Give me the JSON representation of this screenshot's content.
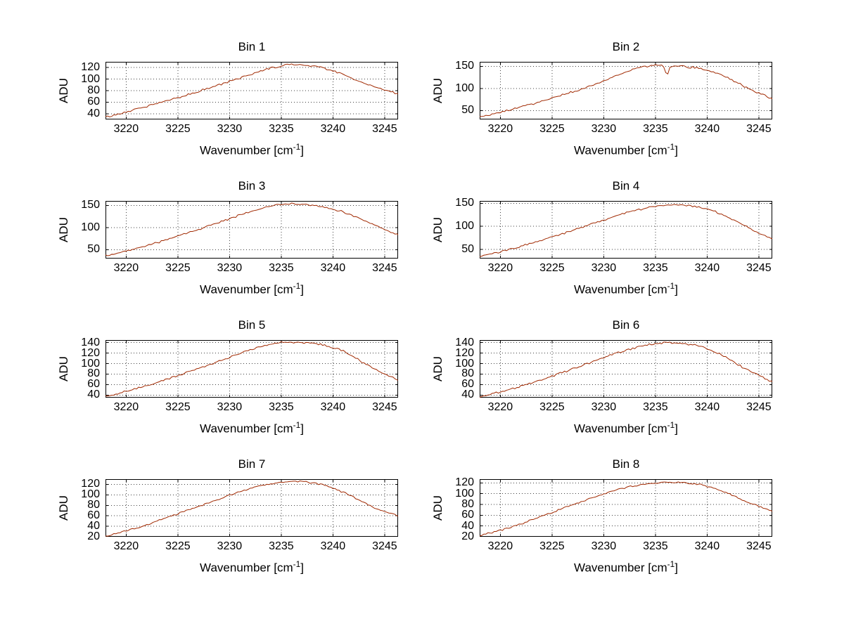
{
  "figure": {
    "background": "#ffffff",
    "description": "2x4 grid of spectra subplots"
  },
  "styles": {
    "line_color": "#a02800",
    "grid_color": "#3f3f3f",
    "axis_color": "#000000",
    "text_color": "#000000"
  },
  "chart_data": [
    {
      "type": "line",
      "title": "Bin 1",
      "xlabel": "Wavenumber [cm^{-1}]",
      "ylabel": "ADU",
      "xlim": [
        3218,
        3246.3
      ],
      "ylim": [
        30,
        130
      ],
      "xticks": [
        3220,
        3225,
        3230,
        3235,
        3240,
        3245
      ],
      "yticks": [
        40,
        60,
        80,
        100,
        120
      ],
      "grid": "on",
      "x_start": 3218,
      "x_step": 1,
      "noise_amp": 2.0,
      "y": [
        34,
        38,
        43,
        48,
        53,
        58,
        63,
        68,
        73,
        79,
        84,
        90,
        96,
        102,
        108,
        114,
        119,
        123,
        126,
        125,
        123,
        120,
        115,
        108,
        100,
        93,
        87,
        81,
        76
      ]
    },
    {
      "type": "line",
      "title": "Bin 2",
      "xlabel": "Wavenumber [cm^{-1}]",
      "ylabel": "ADU",
      "xlim": [
        3218,
        3246.3
      ],
      "ylim": [
        30,
        160
      ],
      "xticks": [
        3220,
        3225,
        3230,
        3235,
        3240,
        3245
      ],
      "yticks": [
        50,
        100,
        150
      ],
      "grid": "on",
      "x_start": 3218,
      "x_step": 1,
      "noise_amp": 2.5,
      "spikes": [
        {
          "x": 3236.1,
          "y": 128,
          "width": 0.35
        }
      ],
      "y": [
        36,
        41,
        46,
        52,
        58,
        64,
        71,
        78,
        85,
        92,
        100,
        108,
        116,
        126,
        136,
        145,
        150,
        152,
        151,
        151,
        149,
        146,
        141,
        134,
        124,
        112,
        100,
        89,
        80
      ]
    },
    {
      "type": "line",
      "title": "Bin 3",
      "xlabel": "Wavenumber [cm^{-1}]",
      "ylabel": "ADU",
      "xlim": [
        3218,
        3246.3
      ],
      "ylim": [
        30,
        160
      ],
      "xticks": [
        3220,
        3225,
        3230,
        3235,
        3240,
        3245
      ],
      "yticks": [
        50,
        100,
        150
      ],
      "grid": "on",
      "x_start": 3218,
      "x_step": 1,
      "noise_amp": 2.5,
      "y": [
        36,
        41,
        47,
        53,
        59,
        66,
        73,
        80,
        88,
        96,
        104,
        112,
        120,
        128,
        136,
        143,
        148,
        152,
        153,
        152,
        150,
        147,
        142,
        135,
        126,
        116,
        105,
        95,
        86
      ]
    },
    {
      "type": "line",
      "title": "Bin 4",
      "xlabel": "Wavenumber [cm^{-1}]",
      "ylabel": "ADU",
      "xlim": [
        3218,
        3246.3
      ],
      "ylim": [
        30,
        155
      ],
      "xticks": [
        3220,
        3225,
        3230,
        3235,
        3240,
        3245
      ],
      "yticks": [
        50,
        100,
        150
      ],
      "grid": "on",
      "x_start": 3218,
      "x_step": 1,
      "noise_amp": 2.5,
      "y": [
        35,
        40,
        45,
        51,
        57,
        63,
        70,
        77,
        84,
        91,
        99,
        107,
        114,
        121,
        128,
        134,
        139,
        143,
        146,
        147,
        146,
        143,
        138,
        130,
        120,
        109,
        97,
        85,
        76
      ]
    },
    {
      "type": "line",
      "title": "Bin 5",
      "xlabel": "Wavenumber [cm^{-1}]",
      "ylabel": "ADU",
      "xlim": [
        3218,
        3246.3
      ],
      "ylim": [
        35,
        145
      ],
      "xticks": [
        3220,
        3225,
        3230,
        3235,
        3240,
        3245
      ],
      "yticks": [
        40,
        60,
        80,
        100,
        120,
        140
      ],
      "grid": "on",
      "x_start": 3218,
      "x_step": 1,
      "noise_amp": 2.2,
      "y": [
        38,
        42,
        47,
        52,
        58,
        64,
        70,
        77,
        84,
        91,
        98,
        105,
        112,
        119,
        126,
        132,
        137,
        140,
        141,
        140,
        139,
        136,
        131,
        124,
        113,
        101,
        90,
        80,
        71
      ]
    },
    {
      "type": "line",
      "title": "Bin 6",
      "xlabel": "Wavenumber [cm^{-1}]",
      "ylabel": "ADU",
      "xlim": [
        3218,
        3246.3
      ],
      "ylim": [
        35,
        145
      ],
      "xticks": [
        3220,
        3225,
        3230,
        3235,
        3240,
        3245
      ],
      "yticks": [
        40,
        60,
        80,
        100,
        120,
        140
      ],
      "grid": "on",
      "x_start": 3218,
      "x_step": 1,
      "noise_amp": 2.2,
      "y": [
        37,
        41,
        46,
        51,
        57,
        63,
        69,
        76,
        83,
        90,
        97,
        104,
        111,
        118,
        124,
        130,
        135,
        138,
        140,
        139,
        138,
        135,
        129,
        121,
        110,
        98,
        87,
        77,
        68
      ]
    },
    {
      "type": "line",
      "title": "Bin 7",
      "xlabel": "Wavenumber [cm^{-1}]",
      "ylabel": "ADU",
      "xlim": [
        3218,
        3246.3
      ],
      "ylim": [
        20,
        130
      ],
      "xticks": [
        3220,
        3225,
        3230,
        3235,
        3240,
        3245
      ],
      "yticks": [
        20,
        40,
        60,
        80,
        100,
        120
      ],
      "grid": "on",
      "x_start": 3218,
      "x_step": 1,
      "noise_amp": 2.0,
      "y": [
        21,
        26,
        31,
        37,
        43,
        50,
        57,
        64,
        71,
        78,
        85,
        92,
        99,
        106,
        112,
        117,
        121,
        124,
        126,
        125,
        123,
        119,
        113,
        105,
        95,
        85,
        76,
        68,
        62
      ]
    },
    {
      "type": "line",
      "title": "Bin 8",
      "xlabel": "Wavenumber [cm^{-1}]",
      "ylabel": "ADU",
      "xlim": [
        3218,
        3246.3
      ],
      "ylim": [
        20,
        127
      ],
      "xticks": [
        3220,
        3225,
        3230,
        3235,
        3240,
        3245
      ],
      "yticks": [
        20,
        40,
        60,
        80,
        100,
        120
      ],
      "grid": "on",
      "x_start": 3218,
      "x_step": 1,
      "noise_amp": 2.0,
      "y": [
        22,
        27,
        32,
        38,
        44,
        51,
        58,
        65,
        72,
        79,
        86,
        93,
        100,
        106,
        111,
        115,
        118,
        120,
        121,
        121,
        120,
        118,
        114,
        108,
        100,
        92,
        84,
        76,
        69
      ]
    }
  ]
}
